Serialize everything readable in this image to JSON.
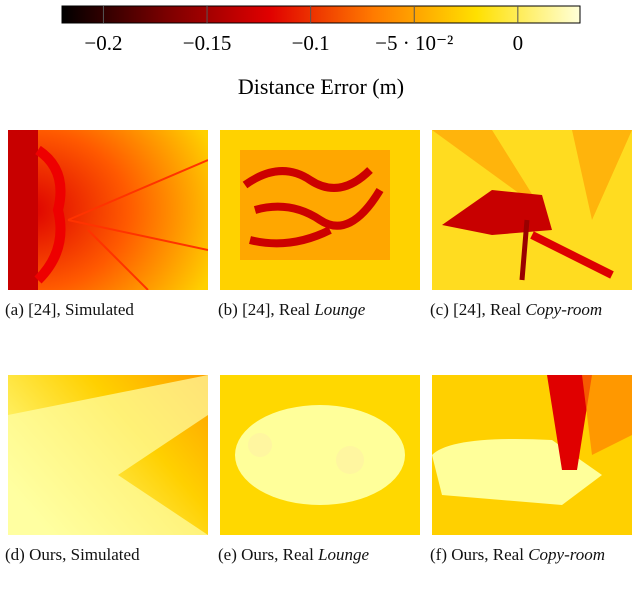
{
  "colorbar": {
    "label": "Distance Error (m)",
    "lim": [
      -0.22,
      0.03
    ],
    "ticks": [
      {
        "value": -0.2,
        "label": "−0.2"
      },
      {
        "value": -0.15,
        "label": "−0.15"
      },
      {
        "value": -0.1,
        "label": "−0.1"
      },
      {
        "value": -0.05,
        "label": "−5 · 10⁻²"
      },
      {
        "value": 0,
        "label": "0"
      }
    ]
  },
  "panels": [
    {
      "caption": "(a) [24], Simulated",
      "italic": null
    },
    {
      "caption": "(b) [24], Real",
      "italic": "Lounge"
    },
    {
      "caption": "(c) [24], Real",
      "italic": "Copy-room"
    },
    {
      "caption": "(d) Ours, Simulated",
      "italic": null
    },
    {
      "caption": "(e) Ours, Real",
      "italic": "Lounge"
    },
    {
      "caption": "(f) Ours, Real",
      "italic": "Copy-room"
    }
  ]
}
